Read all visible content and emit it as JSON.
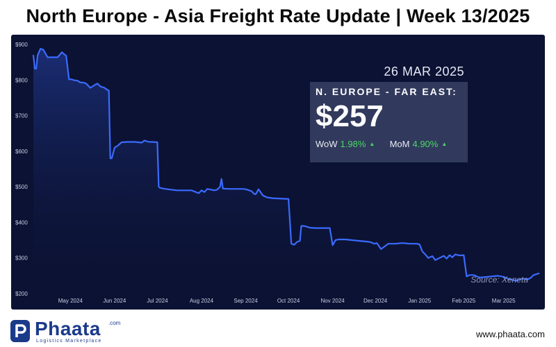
{
  "header": {
    "title": "North Europe - Asia Freight Rate Update | Week 13/2025"
  },
  "panel": {
    "date": "26 MAR 2025",
    "route": "N. EUROPE - FAR EAST:",
    "rate": "$257",
    "wow_label": "WoW",
    "wow_value": "1.98%",
    "mom_label": "MoM",
    "mom_value": "4.90%",
    "source": "Source: Xeneta"
  },
  "footer": {
    "logo_text": "Phaata",
    "logo_com": ".com",
    "logo_tagline": "Logistics Marketplace",
    "website": "www.phaata.com"
  },
  "colors": {
    "background": "#0b1233",
    "line": "#3b6bff",
    "change_up": "#4cd964",
    "brand": "#1a3a8a"
  },
  "chart_data": {
    "type": "line",
    "title": "",
    "xlabel": "",
    "ylabel": "",
    "ylim": [
      200,
      900
    ],
    "yticks": [
      200,
      300,
      400,
      500,
      600,
      700,
      800,
      900
    ],
    "ytick_labels": [
      "$200",
      "$300",
      "$400",
      "$500",
      "$600",
      "$700",
      "$800",
      "$900"
    ],
    "xlim": [
      "2024-04-05",
      "2025-03-27"
    ],
    "xticks": [
      "2024-05-01",
      "2024-06-01",
      "2024-07-01",
      "2024-08-01",
      "2024-09-01",
      "2024-10-01",
      "2024-11-01",
      "2024-12-01",
      "2025-01-01",
      "2025-02-01",
      "2025-03-01"
    ],
    "xtick_labels": [
      "May 2024",
      "Jun 2024",
      "Jul 2024",
      "Aug 2024",
      "Sep 2024",
      "Oct 2024",
      "Nov 2024",
      "Dec 2024",
      "Jan 2025",
      "Feb 2025",
      "Mar 2025"
    ],
    "grid": false,
    "series": [
      {
        "x": [
          "2024-04-05",
          "2024-04-06",
          "2024-04-07",
          "2024-04-08",
          "2024-04-10",
          "2024-04-12",
          "2024-04-15",
          "2024-04-18",
          "2024-04-20",
          "2024-04-22",
          "2024-04-25",
          "2024-04-28",
          "2024-04-30",
          "2024-05-01",
          "2024-05-02",
          "2024-05-03",
          "2024-05-06",
          "2024-05-08",
          "2024-05-10",
          "2024-05-12",
          "2024-05-15",
          "2024-05-18",
          "2024-05-20",
          "2024-05-22",
          "2024-05-25",
          "2024-05-27",
          "2024-05-28",
          "2024-05-29",
          "2024-05-30",
          "2024-06-01",
          "2024-06-03",
          "2024-06-04",
          "2024-06-05",
          "2024-06-06",
          "2024-06-10",
          "2024-06-15",
          "2024-06-20",
          "2024-06-22",
          "2024-06-25",
          "2024-06-28",
          "2024-07-01",
          "2024-07-02",
          "2024-07-03",
          "2024-07-05",
          "2024-07-10",
          "2024-07-15",
          "2024-07-20",
          "2024-07-25",
          "2024-07-30",
          "2024-08-01",
          "2024-08-03",
          "2024-08-05",
          "2024-08-10",
          "2024-08-12",
          "2024-08-14",
          "2024-08-15",
          "2024-08-16",
          "2024-08-20",
          "2024-08-25",
          "2024-08-30",
          "2024-09-01",
          "2024-09-05",
          "2024-09-07",
          "2024-09-08",
          "2024-09-10",
          "2024-09-13",
          "2024-09-16",
          "2024-09-20",
          "2024-09-25",
          "2024-09-30",
          "2024-10-01",
          "2024-10-03",
          "2024-10-05",
          "2024-10-07",
          "2024-10-09",
          "2024-10-10",
          "2024-10-12",
          "2024-10-16",
          "2024-10-20",
          "2024-10-26",
          "2024-10-30",
          "2024-11-01",
          "2024-11-03",
          "2024-11-05",
          "2024-11-10",
          "2024-11-15",
          "2024-11-20",
          "2024-11-25",
          "2024-11-28",
          "2024-11-30",
          "2024-12-02",
          "2024-12-05",
          "2024-12-10",
          "2024-12-15",
          "2024-12-20",
          "2024-12-25",
          "2024-12-28",
          "2024-12-30",
          "2025-01-01",
          "2025-01-03",
          "2025-01-05",
          "2025-01-07",
          "2025-01-10",
          "2025-01-12",
          "2025-01-15",
          "2025-01-18",
          "2025-01-20",
          "2025-01-22",
          "2025-01-24",
          "2025-01-26",
          "2025-01-29",
          "2025-02-01",
          "2025-02-03",
          "2025-02-05",
          "2025-02-08",
          "2025-02-12",
          "2025-02-15",
          "2025-02-20",
          "2025-02-25",
          "2025-03-01",
          "2025-03-05",
          "2025-03-10",
          "2025-03-14",
          "2025-03-18",
          "2025-03-20",
          "2025-03-22",
          "2025-03-26"
        ],
        "y": [
          870,
          832,
          832,
          870,
          888,
          885,
          864,
          864,
          864,
          864,
          878,
          868,
          802,
          802,
          802,
          800,
          798,
          793,
          793,
          790,
          778,
          786,
          790,
          782,
          778,
          772,
          770,
          580,
          580,
          610,
          615,
          618,
          622,
          625,
          626,
          626,
          624,
          630,
          626,
          626,
          625,
          500,
          497,
          495,
          492,
          490,
          490,
          490,
          482,
          490,
          485,
          494,
          490,
          492,
          500,
          522,
          495,
          494,
          494,
          494,
          493,
          488,
          480,
          479,
          493,
          476,
          470,
          468,
          467,
          466,
          466,
          340,
          337,
          345,
          348,
          390,
          390,
          385,
          384,
          384,
          384,
          336,
          350,
          352,
          352,
          350,
          348,
          346,
          344,
          340,
          342,
          325,
          340,
          340,
          342,
          340,
          340,
          340,
          338,
          318,
          310,
          300,
          305,
          294,
          300,
          306,
          298,
          308,
          302,
          310,
          307,
          308,
          248,
          252,
          252,
          245,
          246,
          248,
          250,
          247,
          240,
          236,
          242,
          240,
          244,
          252,
          257
        ]
      }
    ]
  }
}
